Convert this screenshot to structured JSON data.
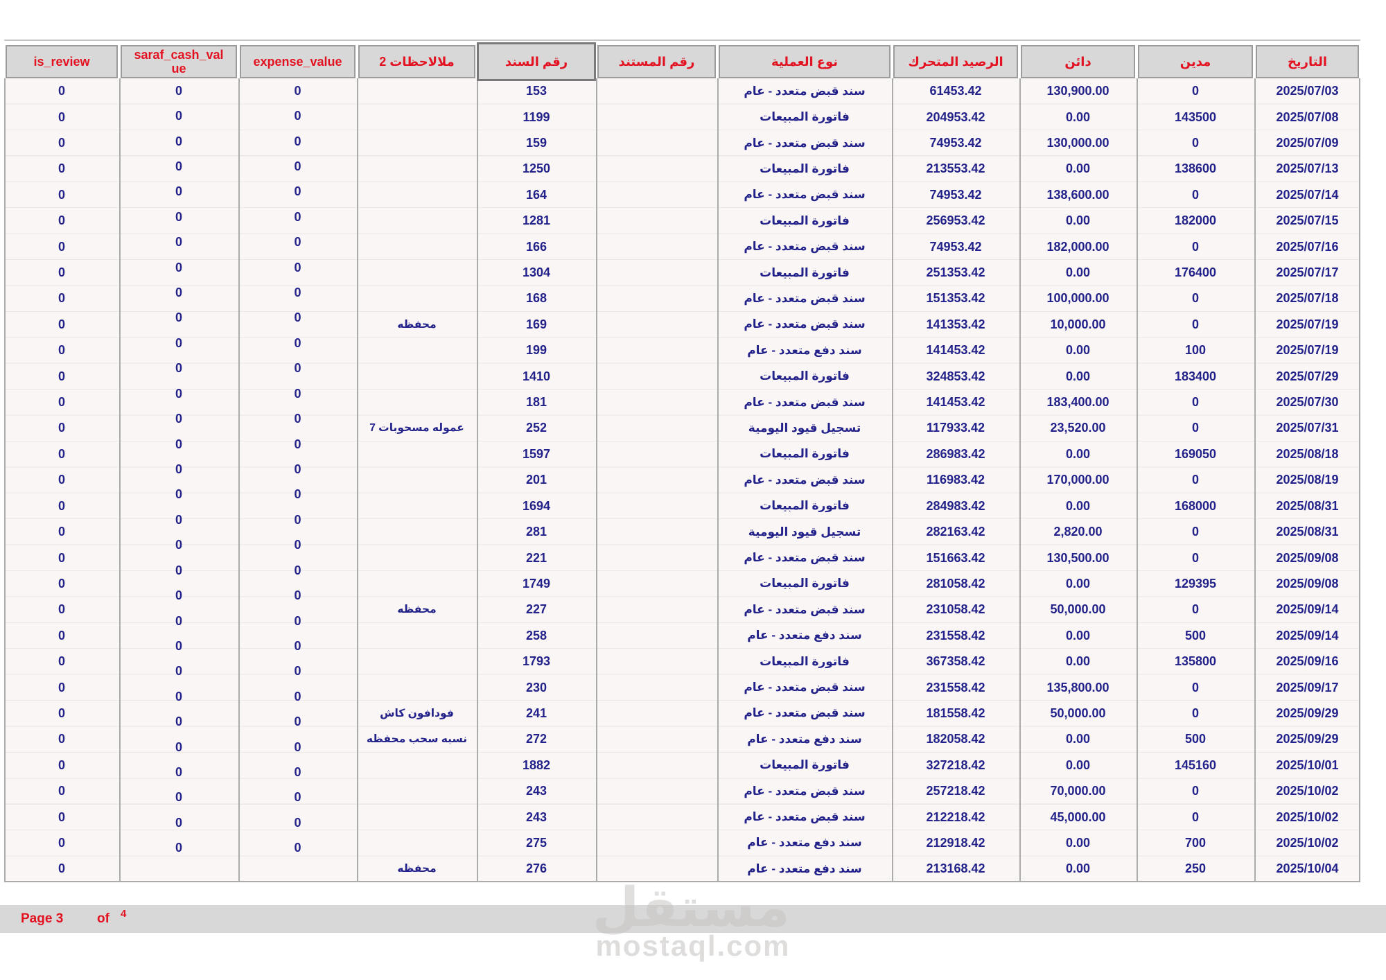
{
  "table": {
    "headers": {
      "is_review": "is_review",
      "saraf_cash_value": "saraf_cash_value",
      "expense_value": "expense_value",
      "notes": "ملالاحظات 2",
      "voucher_no": "رقم السند",
      "doc_no": "رقم المستند",
      "op_type": "نوع العملية",
      "balance": "الرصيد المتحرك",
      "credit": "دائن",
      "debit": "مدين",
      "date": "التاريخ"
    },
    "rows": [
      {
        "date": "2025/07/03",
        "debit": "0",
        "credit": "130,900.00",
        "balance": "61453.42",
        "op_type": "سند قبض متعدد - عام",
        "doc_no": "",
        "voucher_no": "153",
        "notes": "",
        "is_review": "0"
      },
      {
        "date": "2025/07/08",
        "debit": "143500",
        "credit": "0.00",
        "balance": "204953.42",
        "op_type": "فاتورة المبيعات",
        "doc_no": "",
        "voucher_no": "1199",
        "notes": "",
        "is_review": "0"
      },
      {
        "date": "2025/07/09",
        "debit": "0",
        "credit": "130,000.00",
        "balance": "74953.42",
        "op_type": "سند قبض متعدد - عام",
        "doc_no": "",
        "voucher_no": "159",
        "notes": "",
        "is_review": "0"
      },
      {
        "date": "2025/07/13",
        "debit": "138600",
        "credit": "0.00",
        "balance": "213553.42",
        "op_type": "فاتورة المبيعات",
        "doc_no": "",
        "voucher_no": "1250",
        "notes": "",
        "is_review": "0"
      },
      {
        "date": "2025/07/14",
        "debit": "0",
        "credit": "138,600.00",
        "balance": "74953.42",
        "op_type": "سند قبض متعدد - عام",
        "doc_no": "",
        "voucher_no": "164",
        "notes": "",
        "is_review": "0"
      },
      {
        "date": "2025/07/15",
        "debit": "182000",
        "credit": "0.00",
        "balance": "256953.42",
        "op_type": "فاتورة المبيعات",
        "doc_no": "",
        "voucher_no": "1281",
        "notes": "",
        "is_review": "0"
      },
      {
        "date": "2025/07/16",
        "debit": "0",
        "credit": "182,000.00",
        "balance": "74953.42",
        "op_type": "سند قبض متعدد - عام",
        "doc_no": "",
        "voucher_no": "166",
        "notes": "",
        "is_review": "0"
      },
      {
        "date": "2025/07/17",
        "debit": "176400",
        "credit": "0.00",
        "balance": "251353.42",
        "op_type": "فاتورة المبيعات",
        "doc_no": "",
        "voucher_no": "1304",
        "notes": "",
        "is_review": "0"
      },
      {
        "date": "2025/07/18",
        "debit": "0",
        "credit": "100,000.00",
        "balance": "151353.42",
        "op_type": "سند قبض متعدد - عام",
        "doc_no": "",
        "voucher_no": "168",
        "notes": "",
        "is_review": "0"
      },
      {
        "date": "2025/07/19",
        "debit": "0",
        "credit": "10,000.00",
        "balance": "141353.42",
        "op_type": "سند قبض متعدد - عام",
        "doc_no": "",
        "voucher_no": "169",
        "notes": "محفظه",
        "is_review": "0"
      },
      {
        "date": "2025/07/19",
        "debit": "100",
        "credit": "0.00",
        "balance": "141453.42",
        "op_type": "سند دفع متعدد - عام",
        "doc_no": "",
        "voucher_no": "199",
        "notes": "",
        "is_review": "0"
      },
      {
        "date": "2025/07/29",
        "debit": "183400",
        "credit": "0.00",
        "balance": "324853.42",
        "op_type": "فاتورة المبيعات",
        "doc_no": "",
        "voucher_no": "1410",
        "notes": "",
        "is_review": "0"
      },
      {
        "date": "2025/07/30",
        "debit": "0",
        "credit": "183,400.00",
        "balance": "141453.42",
        "op_type": "سند قبض متعدد - عام",
        "doc_no": "",
        "voucher_no": "181",
        "notes": "",
        "is_review": "0"
      },
      {
        "date": "2025/07/31",
        "debit": "0",
        "credit": "23,520.00",
        "balance": "117933.42",
        "op_type": "تسجيل قيود اليومية",
        "doc_no": "",
        "voucher_no": "252",
        "notes": "عموله مسحوبات 7",
        "is_review": "0"
      },
      {
        "date": "2025/08/18",
        "debit": "169050",
        "credit": "0.00",
        "balance": "286983.42",
        "op_type": "فاتورة المبيعات",
        "doc_no": "",
        "voucher_no": "1597",
        "notes": "",
        "is_review": "0"
      },
      {
        "date": "2025/08/19",
        "debit": "0",
        "credit": "170,000.00",
        "balance": "116983.42",
        "op_type": "سند قبض متعدد - عام",
        "doc_no": "",
        "voucher_no": "201",
        "notes": "",
        "is_review": "0"
      },
      {
        "date": "2025/08/31",
        "debit": "168000",
        "credit": "0.00",
        "balance": "284983.42",
        "op_type": "فاتورة المبيعات",
        "doc_no": "",
        "voucher_no": "1694",
        "notes": "",
        "is_review": "0"
      },
      {
        "date": "2025/08/31",
        "debit": "0",
        "credit": "2,820.00",
        "balance": "282163.42",
        "op_type": "تسجيل قيود اليومية",
        "doc_no": "",
        "voucher_no": "281",
        "notes": "",
        "is_review": "0"
      },
      {
        "date": "2025/09/08",
        "debit": "0",
        "credit": "130,500.00",
        "balance": "151663.42",
        "op_type": "سند قبض متعدد - عام",
        "doc_no": "",
        "voucher_no": "221",
        "notes": "",
        "is_review": "0"
      },
      {
        "date": "2025/09/08",
        "debit": "129395",
        "credit": "0.00",
        "balance": "281058.42",
        "op_type": "فاتورة المبيعات",
        "doc_no": "",
        "voucher_no": "1749",
        "notes": "",
        "is_review": "0"
      },
      {
        "date": "2025/09/14",
        "debit": "0",
        "credit": "50,000.00",
        "balance": "231058.42",
        "op_type": "سند قبض متعدد - عام",
        "doc_no": "",
        "voucher_no": "227",
        "notes": "محفظه",
        "is_review": "0"
      },
      {
        "date": "2025/09/14",
        "debit": "500",
        "credit": "0.00",
        "balance": "231558.42",
        "op_type": "سند دفع متعدد - عام",
        "doc_no": "",
        "voucher_no": "258",
        "notes": "",
        "is_review": "0"
      },
      {
        "date": "2025/09/16",
        "debit": "135800",
        "credit": "0.00",
        "balance": "367358.42",
        "op_type": "فاتورة المبيعات",
        "doc_no": "",
        "voucher_no": "1793",
        "notes": "",
        "is_review": "0"
      },
      {
        "date": "2025/09/17",
        "debit": "0",
        "credit": "135,800.00",
        "balance": "231558.42",
        "op_type": "سند قبض متعدد - عام",
        "doc_no": "",
        "voucher_no": "230",
        "notes": "",
        "is_review": "0"
      },
      {
        "date": "2025/09/29",
        "debit": "0",
        "credit": "50,000.00",
        "balance": "181558.42",
        "op_type": "سند قبض متعدد - عام",
        "doc_no": "",
        "voucher_no": "241",
        "notes": "فودافون كاش",
        "is_review": "0"
      },
      {
        "date": "2025/09/29",
        "debit": "500",
        "credit": "0.00",
        "balance": "182058.42",
        "op_type": "سند دفع متعدد - عام",
        "doc_no": "",
        "voucher_no": "272",
        "notes": "نسبه سحب محفظه",
        "is_review": "0"
      },
      {
        "date": "2025/10/01",
        "debit": "145160",
        "credit": "0.00",
        "balance": "327218.42",
        "op_type": "فاتورة المبيعات",
        "doc_no": "",
        "voucher_no": "1882",
        "notes": "",
        "is_review": "0"
      },
      {
        "date": "2025/10/02",
        "debit": "0",
        "credit": "70,000.00",
        "balance": "257218.42",
        "op_type": "سند قبض متعدد - عام",
        "doc_no": "",
        "voucher_no": "243",
        "notes": "",
        "is_review": "0"
      },
      {
        "date": "2025/10/02",
        "debit": "0",
        "credit": "45,000.00",
        "balance": "212218.42",
        "op_type": "سند قبض متعدد - عام",
        "doc_no": "",
        "voucher_no": "243",
        "notes": "",
        "is_review": "0"
      },
      {
        "date": "2025/10/02",
        "debit": "700",
        "credit": "0.00",
        "balance": "212918.42",
        "op_type": "سند دفع متعدد - عام",
        "doc_no": "",
        "voucher_no": "275",
        "notes": "",
        "is_review": "0"
      },
      {
        "date": "2025/10/04",
        "debit": "250",
        "credit": "0.00",
        "balance": "213168.42",
        "op_type": "سند دفع متعدد - عام",
        "doc_no": "",
        "voucher_no": "276",
        "notes": "محفظه",
        "is_review": "0"
      }
    ],
    "saraf_cash_values": [
      "0",
      "0",
      "0",
      "0",
      "0",
      "0",
      "0",
      "0",
      "0",
      "0",
      "0",
      "0",
      "0",
      "0",
      "0",
      "0",
      "0",
      "0",
      "0",
      "0",
      "0",
      "0",
      "0",
      "0",
      "0",
      "0",
      "0",
      "0",
      "0",
      "0",
      "0"
    ],
    "expense_values": [
      "0",
      "0",
      "0",
      "0",
      "0",
      "0",
      "0",
      "0",
      "0",
      "0",
      "0",
      "0",
      "0",
      "0",
      "0",
      "0",
      "0",
      "0",
      "0",
      "0",
      "0",
      "0",
      "0",
      "0",
      "0",
      "0",
      "0",
      "0",
      "0",
      "0",
      "0"
    ]
  },
  "footer": {
    "page_label": "Page 3",
    "of_label": "of",
    "total_pages": "4"
  },
  "watermark": {
    "arabic": "مستقل",
    "domain": "mostaql.com"
  },
  "colors": {
    "header_red": "#e31221",
    "body_navy": "#22228a",
    "header_bg": "#d8d8d8",
    "body_bg": "#faf6f5",
    "border_gray": "#ababab"
  }
}
